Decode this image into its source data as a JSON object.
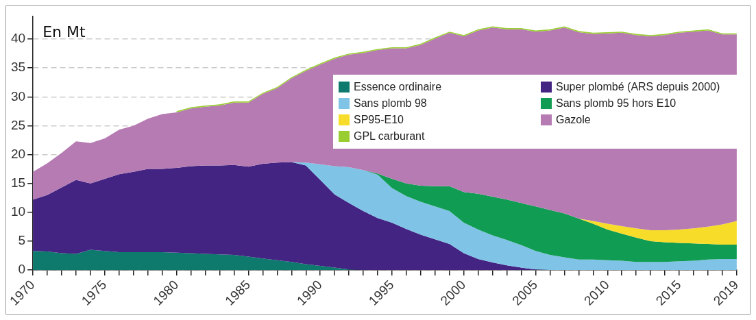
{
  "chart_data": {
    "type": "area",
    "stacked": true,
    "annotations": [
      "En Mt"
    ],
    "x": [
      1970,
      1971,
      1972,
      1973,
      1974,
      1975,
      1976,
      1977,
      1978,
      1979,
      1980,
      1981,
      1982,
      1983,
      1984,
      1985,
      1986,
      1987,
      1988,
      1989,
      1990,
      1991,
      1992,
      1993,
      1994,
      1995,
      1996,
      1997,
      1998,
      1999,
      2000,
      2001,
      2002,
      2003,
      2004,
      2005,
      2006,
      2007,
      2008,
      2009,
      2010,
      2011,
      2012,
      2013,
      2014,
      2015,
      2016,
      2017,
      2018,
      2019
    ],
    "xlim": [
      1970,
      2019
    ],
    "xticks": [
      1970,
      {
        "value": 1971,
        "label": null
      },
      {
        "value": 1972,
        "label": null
      },
      {
        "value": 1973,
        "label": null
      },
      {
        "value": 1974,
        "label": null
      },
      1975,
      {
        "value": 1976,
        "label": null
      },
      {
        "value": 1977,
        "label": null
      },
      {
        "value": 1978,
        "label": null
      },
      {
        "value": 1979,
        "label": null
      },
      1980,
      {
        "value": 1981,
        "label": null
      },
      {
        "value": 1982,
        "label": null
      },
      {
        "value": 1983,
        "label": null
      },
      {
        "value": 1984,
        "label": null
      },
      1985,
      {
        "value": 1986,
        "label": null
      },
      {
        "value": 1987,
        "label": null
      },
      {
        "value": 1988,
        "label": null
      },
      {
        "value": 1989,
        "label": null
      },
      1990,
      {
        "value": 1991,
        "label": null
      },
      {
        "value": 1992,
        "label": null
      },
      {
        "value": 1993,
        "label": null
      },
      {
        "value": 1994,
        "label": null
      },
      1995,
      {
        "value": 1996,
        "label": null
      },
      {
        "value": 1997,
        "label": null
      },
      {
        "value": 1998,
        "label": null
      },
      {
        "value": 1999,
        "label": null
      },
      2000,
      {
        "value": 2001,
        "label": null
      },
      {
        "value": 2002,
        "label": null
      },
      {
        "value": 2003,
        "label": null
      },
      {
        "value": 2004,
        "label": null
      },
      2005,
      {
        "value": 2006,
        "label": null
      },
      {
        "value": 2007,
        "label": null
      },
      {
        "value": 2008,
        "label": null
      },
      {
        "value": 2009,
        "label": null
      },
      2010,
      {
        "value": 2011,
        "label": null
      },
      {
        "value": 2012,
        "label": null
      },
      {
        "value": 2013,
        "label": null
      },
      {
        "value": 2014,
        "label": null
      },
      2015,
      {
        "value": 2016,
        "label": null
      },
      {
        "value": 2017,
        "label": null
      },
      {
        "value": 2018,
        "label": null
      },
      2019
    ],
    "ylim": [
      0,
      44
    ],
    "yticks": [
      0,
      5,
      10,
      15,
      20,
      25,
      30,
      35,
      40
    ],
    "grid": "y",
    "legend": "top right",
    "series": [
      {
        "name": "Essence ordinaire",
        "color": "#0e7a6d",
        "values": [
          3.3,
          3.2,
          2.9,
          2.8,
          3.5,
          3.3,
          3.1,
          3.1,
          3.1,
          3.1,
          3.0,
          2.9,
          2.8,
          2.7,
          2.6,
          2.3,
          2.0,
          1.7,
          1.4,
          1.0,
          0.7,
          0.4,
          0.1,
          0,
          null,
          null,
          null,
          null,
          null,
          null,
          null,
          null,
          null,
          null,
          null,
          null,
          null,
          null,
          null,
          null,
          null,
          null,
          null,
          null,
          null,
          null,
          null,
          null,
          null,
          null
        ]
      },
      {
        "name": "Super plombé (ARS depuis 2000)",
        "color": "#432483",
        "values": [
          8.9,
          9.8,
          11.4,
          12.8,
          11.5,
          12.5,
          13.5,
          13.9,
          14.4,
          14.4,
          14.7,
          15.1,
          15.3,
          15.4,
          15.6,
          15.6,
          16.4,
          16.9,
          17.3,
          17.1,
          14.9,
          12.7,
          11.5,
          10.2,
          9.0,
          8.2,
          7.1,
          6.1,
          5.3,
          4.5,
          2.9,
          1.9,
          1.3,
          0.8,
          0.4,
          0.1,
          0,
          null,
          null,
          null,
          null,
          null,
          null,
          null,
          null,
          null,
          null,
          null,
          null,
          null
        ]
      },
      {
        "name": "Sans plomb 98",
        "color": "#7fc3e6",
        "values": [
          null,
          null,
          null,
          null,
          null,
          null,
          null,
          null,
          null,
          null,
          null,
          null,
          null,
          null,
          null,
          null,
          null,
          null,
          0,
          0.5,
          2.7,
          4.9,
          6.2,
          7.1,
          7.5,
          6.0,
          5.7,
          5.7,
          5.7,
          5.7,
          5.3,
          5.1,
          4.7,
          4.4,
          3.9,
          3.2,
          2.6,
          2.2,
          1.8,
          1.8,
          1.7,
          1.6,
          1.4,
          1.4,
          1.4,
          1.5,
          1.6,
          1.8,
          1.9,
          1.9
        ]
      },
      {
        "name": "Sans plomb 95 hors E10",
        "color": "#109c52",
        "values": [
          null,
          null,
          null,
          null,
          null,
          null,
          null,
          null,
          null,
          null,
          null,
          null,
          null,
          null,
          null,
          null,
          null,
          null,
          null,
          null,
          null,
          null,
          null,
          0,
          0.2,
          1.6,
          2.2,
          2.8,
          3.5,
          4.3,
          5.3,
          6.2,
          6.7,
          7.0,
          7.3,
          7.7,
          7.8,
          7.6,
          7.1,
          6.2,
          5.3,
          4.7,
          4.2,
          3.6,
          3.4,
          3.2,
          3.0,
          2.7,
          2.5,
          2.5
        ]
      },
      {
        "name": "SP95-E10",
        "color": "#f7dc2a",
        "values": [
          null,
          null,
          null,
          null,
          null,
          null,
          null,
          null,
          null,
          null,
          null,
          null,
          null,
          null,
          null,
          null,
          null,
          null,
          null,
          null,
          null,
          null,
          null,
          null,
          null,
          null,
          null,
          null,
          null,
          null,
          null,
          null,
          null,
          null,
          null,
          null,
          null,
          null,
          0,
          0.5,
          1.0,
          1.3,
          1.6,
          1.9,
          2.1,
          2.3,
          2.6,
          3.0,
          3.5,
          4.1
        ]
      },
      {
        "name": "Gazole",
        "color": "#b57bb2",
        "values": [
          4.8,
          5.5,
          6.0,
          6.7,
          7.0,
          7.0,
          7.7,
          8.0,
          8.7,
          9.5,
          9.6,
          10.0,
          10.2,
          10.4,
          10.8,
          11.1,
          12.1,
          12.9,
          14.5,
          15.9,
          17.3,
          18.6,
          19.5,
          20.3,
          21.4,
          22.6,
          23.4,
          24.4,
          25.6,
          26.6,
          27.0,
          28.3,
          29.3,
          29.5,
          30.1,
          30.3,
          31.1,
          32.2,
          32.3,
          32.4,
          33.0,
          33.5,
          33.5,
          33.6,
          33.8,
          34.1,
          34.1,
          34.0,
          32.9,
          32.3
        ]
      },
      {
        "name": "GPL carburant",
        "color": "#9acd32",
        "values": [
          null,
          null,
          null,
          null,
          null,
          null,
          null,
          null,
          null,
          null,
          0.2,
          0.2,
          0.2,
          0.2,
          0.2,
          0.2,
          0.2,
          0.2,
          0.2,
          0.2,
          0.2,
          0.2,
          0.2,
          0.2,
          0.2,
          0.2,
          0.2,
          0.2,
          0.2,
          0.2,
          0.2,
          0.2,
          0.2,
          0.2,
          0.2,
          0.2,
          0.2,
          0.2,
          0.2,
          0.2,
          0.2,
          0.2,
          0.2,
          0.2,
          0.2,
          0.2,
          0.2,
          0.2,
          0.2,
          0.2
        ]
      }
    ]
  }
}
